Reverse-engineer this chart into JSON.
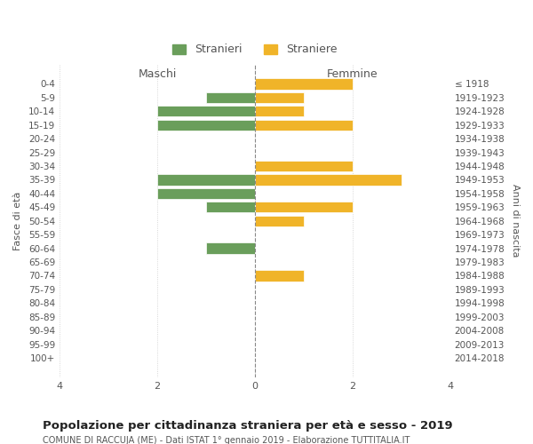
{
  "age_groups": [
    "0-4",
    "5-9",
    "10-14",
    "15-19",
    "20-24",
    "25-29",
    "30-34",
    "35-39",
    "40-44",
    "45-49",
    "50-54",
    "55-59",
    "60-64",
    "65-69",
    "70-74",
    "75-79",
    "80-84",
    "85-89",
    "90-94",
    "95-99",
    "100+"
  ],
  "birth_years": [
    "2014-2018",
    "2009-2013",
    "2004-2008",
    "1999-2003",
    "1994-1998",
    "1989-1993",
    "1984-1988",
    "1979-1983",
    "1974-1978",
    "1969-1973",
    "1964-1968",
    "1959-1963",
    "1954-1958",
    "1949-1953",
    "1944-1948",
    "1939-1943",
    "1934-1938",
    "1929-1933",
    "1924-1928",
    "1919-1923",
    "≤ 1918"
  ],
  "maschi": [
    0,
    1,
    2,
    2,
    0,
    0,
    0,
    2,
    2,
    1,
    0,
    0,
    1,
    0,
    0,
    0,
    0,
    0,
    0,
    0,
    0
  ],
  "femmine": [
    2,
    1,
    1,
    2,
    0,
    0,
    2,
    3,
    0,
    2,
    1,
    0,
    0,
    0,
    1,
    0,
    0,
    0,
    0,
    0,
    0
  ],
  "color_maschi": "#6a9e5b",
  "color_femmine": "#f0b429",
  "title": "Popolazione per cittadinanza straniera per età e sesso - 2019",
  "subtitle": "COMUNE DI RACCUJA (ME) - Dati ISTAT 1° gennaio 2019 - Elaborazione TUTTITALIA.IT",
  "xlabel_left": "Maschi",
  "xlabel_right": "Femmine",
  "ylabel_left": "Fasce di età",
  "ylabel_right": "Anni di nascita",
  "legend_maschi": "Stranieri",
  "legend_femmine": "Straniere",
  "xlim": 4,
  "background_color": "#ffffff",
  "grid_color": "#cccccc"
}
